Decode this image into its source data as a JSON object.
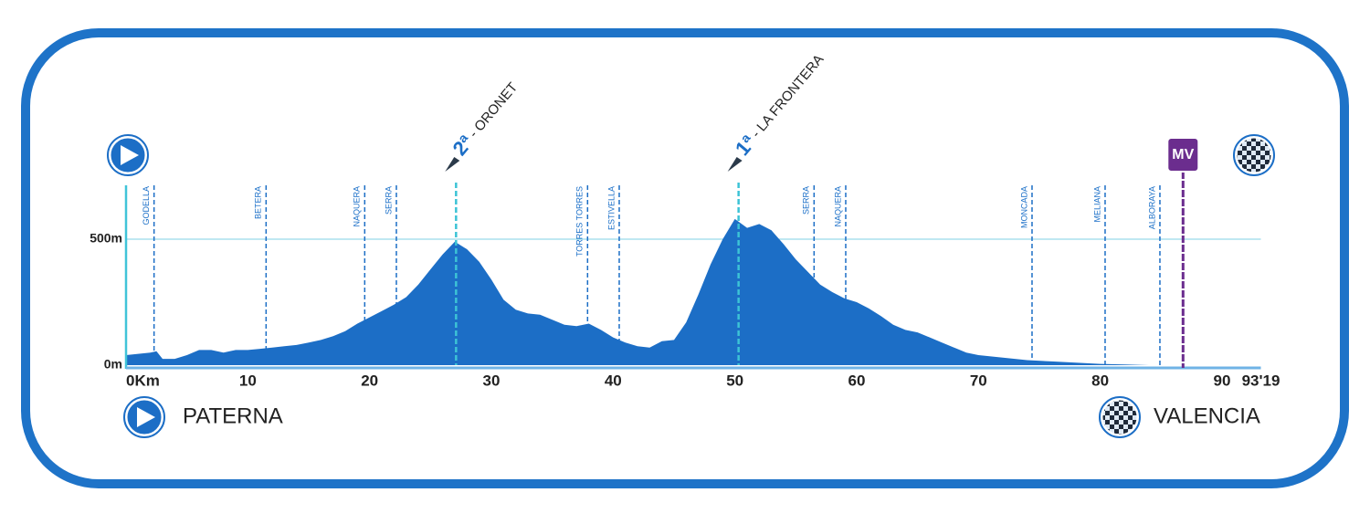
{
  "chart_data": {
    "type": "area",
    "color": "#1c6ec6",
    "grid": true,
    "xlim": [
      0,
      93.19
    ],
    "ylim": [
      0,
      700
    ],
    "xticks": [
      {
        "value": 0,
        "label": "0Km"
      },
      10,
      20,
      30,
      40,
      50,
      60,
      70,
      80,
      90,
      {
        "value": 93.19,
        "label": "93'19"
      }
    ],
    "yticks": [
      {
        "value": 0,
        "label": "0m"
      },
      {
        "value": 500,
        "label": "500m"
      }
    ],
    "x": [
      0,
      1,
      2,
      2.5,
      3,
      4,
      5,
      6,
      7,
      8,
      9,
      10,
      11,
      12,
      13,
      14,
      15,
      16,
      17,
      18,
      19,
      20,
      21,
      22,
      23,
      24,
      25,
      26,
      27,
      28,
      29,
      30,
      31,
      32,
      33,
      34,
      35,
      36,
      37,
      38,
      39,
      40,
      41,
      42,
      43,
      44,
      45,
      46,
      47,
      48,
      49,
      50,
      51,
      52,
      53,
      54,
      55,
      56,
      57,
      58,
      59,
      60,
      61,
      62,
      63,
      64,
      65,
      66,
      67,
      68,
      69,
      70,
      72,
      74,
      76,
      78,
      80,
      82,
      84,
      86,
      93.19
    ],
    "values": [
      40,
      45,
      50,
      55,
      25,
      25,
      40,
      60,
      60,
      50,
      60,
      60,
      65,
      70,
      75,
      80,
      90,
      100,
      115,
      135,
      165,
      190,
      215,
      240,
      270,
      320,
      380,
      440,
      490,
      460,
      410,
      340,
      260,
      220,
      205,
      200,
      180,
      160,
      155,
      165,
      140,
      110,
      90,
      75,
      70,
      95,
      100,
      170,
      280,
      400,
      500,
      580,
      545,
      560,
      535,
      480,
      420,
      370,
      320,
      290,
      265,
      250,
      225,
      195,
      160,
      140,
      130,
      110,
      90,
      70,
      50,
      40,
      30,
      20,
      15,
      10,
      5,
      3,
      0,
      0,
      0
    ],
    "markers": [
      {
        "name": "GODELLA",
        "x": 2.3
      },
      {
        "name": "BETERA",
        "x": 11.5
      },
      {
        "name": "NAQUERA",
        "x": 19.6
      },
      {
        "name": "SERRA",
        "x": 22.2
      },
      {
        "name": "TORRES TORRES",
        "x": 37.9
      },
      {
        "name": "ESTIVELLA",
        "x": 40.5
      },
      {
        "name": "SERRA",
        "x": 56.5
      },
      {
        "name": "NAQUERA",
        "x": 59.1
      },
      {
        "name": "MONCADA",
        "x": 74.4
      },
      {
        "name": "MELIANA",
        "x": 80.4
      },
      {
        "name": "ALBORAYA",
        "x": 84.9
      }
    ],
    "climbs": [
      {
        "rank": "2ª",
        "name": " - ORONET",
        "x": 27.1
      },
      {
        "rank": "1ª",
        "name": " - LA FRONTERA",
        "x": 50.3
      }
    ],
    "sprint": {
      "label": "MV",
      "x": 86.8,
      "color": "#6b2d8e"
    },
    "start": "PATERNA",
    "finish": "VALENCIA"
  }
}
